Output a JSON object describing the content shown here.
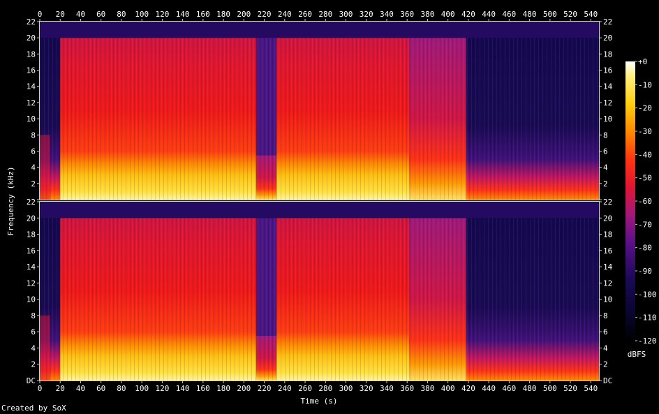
{
  "chart_data": {
    "type": "heatmap",
    "title": "",
    "xlabel": "Time (s)",
    "ylabel": "Frequency (kHz)",
    "xlim": [
      0,
      548
    ],
    "ylim": [
      0,
      22
    ],
    "x_ticks": [
      0,
      20,
      40,
      60,
      80,
      100,
      120,
      140,
      160,
      180,
      200,
      220,
      240,
      260,
      280,
      300,
      320,
      340,
      360,
      380,
      400,
      420,
      440,
      460,
      480,
      500,
      520,
      540
    ],
    "y_ticks": [
      "DC",
      "2",
      "4",
      "6",
      "8",
      "10",
      "12",
      "14",
      "16",
      "18",
      "20",
      "22"
    ],
    "channels": 2,
    "colorbar": {
      "label": "dBFS",
      "ticks": [
        "+0",
        "-10",
        "-20",
        "-30",
        "-40",
        "-50",
        "-60",
        "-70",
        "-80",
        "-90",
        "-100",
        "-110",
        "-120"
      ],
      "range": [
        -120,
        0
      ]
    },
    "segments": [
      {
        "start": 0,
        "end": 20,
        "cutoff_khz": 20,
        "level": "low"
      },
      {
        "start": 20,
        "end": 212,
        "cutoff_khz": 20,
        "level": "high"
      },
      {
        "start": 212,
        "end": 232,
        "cutoff_khz": 5.5,
        "level": "medium"
      },
      {
        "start": 232,
        "end": 362,
        "cutoff_khz": 20,
        "level": "high"
      },
      {
        "start": 362,
        "end": 418,
        "cutoff_khz": 20,
        "level": "medium"
      },
      {
        "start": 418,
        "end": 548,
        "cutoff_khz": 20,
        "level": "low"
      }
    ]
  },
  "credit": "Created by SoX",
  "colors": {
    "background": "#000000",
    "low": "#1a0a55",
    "mid": "#8a1a90",
    "high": "#f01515",
    "peak": "#fff0a0"
  }
}
